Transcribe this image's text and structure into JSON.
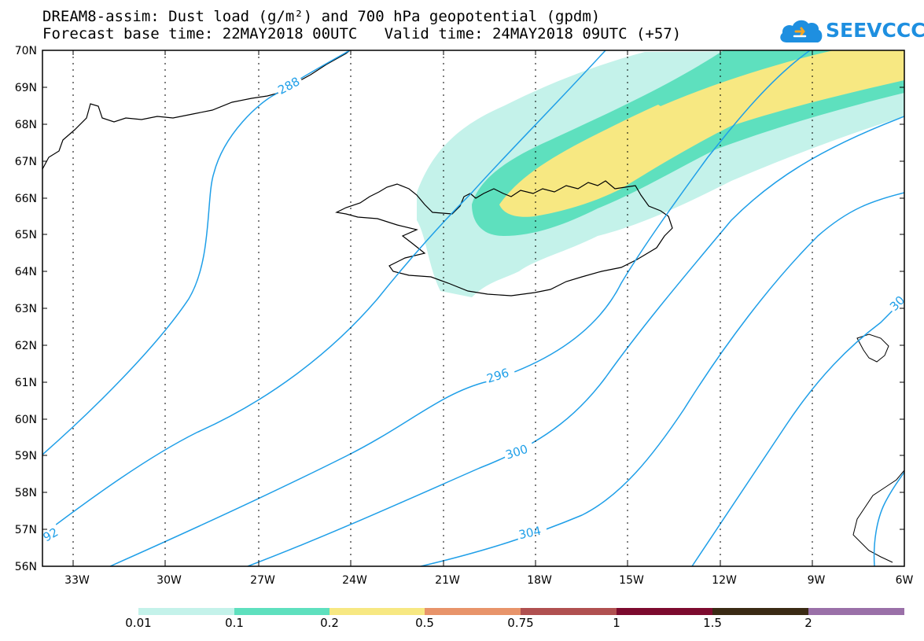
{
  "header": {
    "line1": "DREAM8-assim: Dust load (g/m²) and 700 hPa geopotential (gpdm)",
    "line2": "Forecast base time: 22MAY2018 00UTC   Valid time: 24MAY2018 09UTC (+57)"
  },
  "logo": {
    "text": "SEEVCCC",
    "color": "#1e8fe0"
  },
  "map": {
    "lat_labels": [
      "70N",
      "69N",
      "68N",
      "67N",
      "66N",
      "65N",
      "64N",
      "63N",
      "62N",
      "61N",
      "60N",
      "59N",
      "58N",
      "57N",
      "56N"
    ],
    "lon_labels": [
      "33W",
      "30W",
      "27W",
      "24W",
      "21W",
      "18W",
      "15W",
      "12W",
      "9W",
      "6W"
    ],
    "contour_labels": [
      "288",
      "296",
      "300",
      "304",
      "30",
      "92"
    ],
    "contour_color": "#1f9fe8",
    "dust_colors": {
      "0.01": "#c4f2ea",
      "0.1": "#5ee0be",
      "0.2": "#f7e882"
    }
  },
  "colorbar": {
    "labels": [
      "0.01",
      "0.1",
      "0.2",
      "0.5",
      "0.75",
      "1",
      "1.5",
      "2"
    ],
    "colors": [
      "#c4f2ea",
      "#5ee0be",
      "#f7e882",
      "#e8946a",
      "#b05050",
      "#7c0a2e",
      "#3a2a14",
      "#9a70a8"
    ]
  }
}
